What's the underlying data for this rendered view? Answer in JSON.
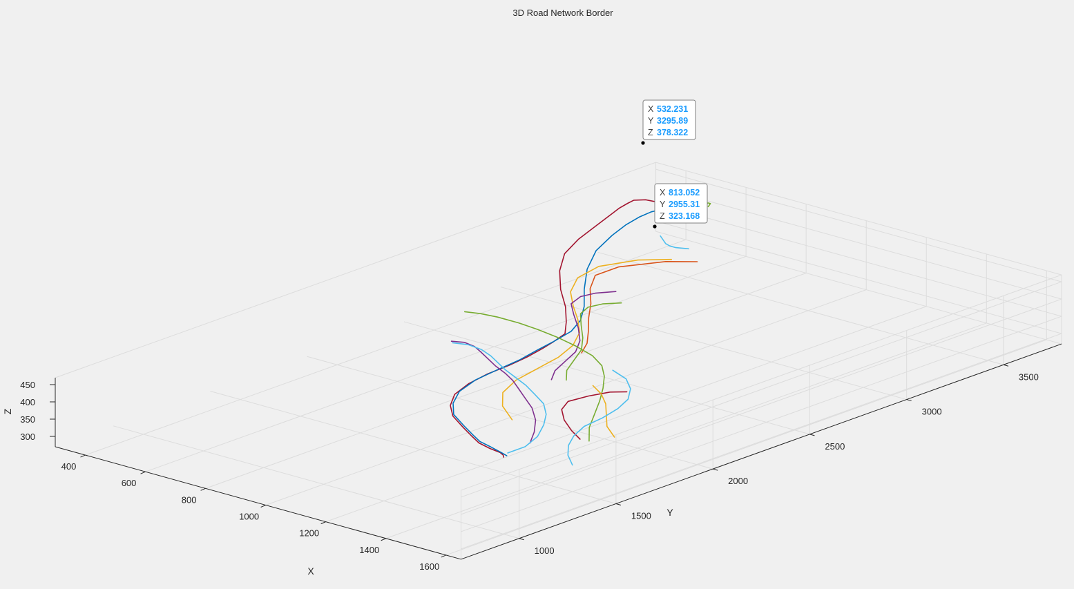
{
  "chart_data": {
    "type": "line",
    "title": "3D Road Network Border",
    "xlabel": "X",
    "ylabel": "Y",
    "zlabel": "Z",
    "xlim": [
      300,
      1650
    ],
    "ylim": [
      700,
      3800
    ],
    "zlim": [
      270,
      470
    ],
    "x_ticks": [
      400,
      600,
      800,
      1000,
      1200,
      1400,
      1600
    ],
    "y_ticks": [
      1000,
      1500,
      2000,
      2500,
      3000,
      3500
    ],
    "z_ticks": [
      300,
      350,
      400,
      450
    ],
    "grid": true,
    "colors": [
      "#0072BD",
      "#D95319",
      "#EDB120",
      "#7E2F8E",
      "#77AC30",
      "#4DBEEE",
      "#A2142F"
    ],
    "series": [
      {
        "color": "#A2142F",
        "z": 400,
        "x": [
          520,
          440,
          350,
          330,
          335,
          345,
          360,
          380,
          400,
          430,
          480,
          560,
          660,
          760,
          840,
          900,
          920,
          935,
          950,
          960,
          965,
          980,
          1010,
          1060,
          1120,
          1200,
          1260,
          1310,
          1360,
          1400,
          1420,
          1430
        ],
        "y": [
          3700,
          3690,
          3670,
          3640,
          3600,
          3540,
          3480,
          3400,
          3320,
          3200,
          3050,
          2900,
          2750,
          2620,
          2500,
          2400,
          2310,
          2230,
          2130,
          2020,
          1900,
          1780,
          1660,
          1560,
          1480,
          1410,
          1360,
          1320,
          1300,
          1290,
          1275,
          1260
        ]
      },
      {
        "color": "#0072BD",
        "z": 398,
        "x": [
          515,
          470,
          430,
          420,
          425,
          440,
          470,
          520,
          600,
          700,
          790,
          855,
          895,
          915,
          930,
          948,
          958,
          970,
          1000,
          1050,
          1110,
          1190,
          1250,
          1300,
          1350,
          1395,
          1425
        ],
        "y": [
          3680,
          3680,
          3650,
          3590,
          3520,
          3430,
          3310,
          3150,
          2980,
          2810,
          2670,
          2550,
          2440,
          2320,
          2210,
          2090,
          1960,
          1830,
          1700,
          1590,
          1500,
          1430,
          1380,
          1340,
          1320,
          1300,
          1285
        ]
      },
      {
        "color": "#77AC30",
        "z": 398,
        "x": [
          520,
          490,
          480,
          488,
          500
        ],
        "y": [
          3720,
          3750,
          3790,
          3790,
          3760
        ]
      },
      {
        "color": "#4DBEEE",
        "z": 396,
        "x": [
          560,
          590,
          610,
          630,
          650,
          680
        ],
        "y": [
          3420,
          3390,
          3370,
          3360,
          3360,
          3380
        ]
      },
      {
        "color": "#EDB120",
        "z": 394,
        "x": [
          700,
          640,
          600,
          620,
          680,
          760,
          840,
          910,
          965,
          1000,
          1020,
          1040,
          1080,
          1150,
          1240
        ],
        "y": [
          3260,
          3180,
          3040,
          2900,
          2770,
          2660,
          2560,
          2460,
          2340,
          2210,
          2070,
          1930,
          1800,
          1690,
          1600
        ]
      },
      {
        "color": "#D95319",
        "z": 394,
        "x": [
          760,
          700,
          640,
          640,
          700,
          780,
          850,
          920,
          980,
          1020
        ],
        "y": [
          3300,
          3230,
          3080,
          2960,
          2840,
          2720,
          2600,
          2490,
          2390,
          2300
        ]
      },
      {
        "color": "#7E2F8E",
        "z": 392,
        "x": [
          760,
          730,
          720,
          740,
          800,
          880,
          950,
          1000,
          1030,
          1060,
          1100
        ],
        "y": [
          2880,
          2820,
          2760,
          2680,
          2600,
          2500,
          2400,
          2300,
          2200,
          2100,
          2020
        ]
      },
      {
        "color": "#77AC30",
        "z": 392,
        "x": [
          830,
          800,
          790,
          810,
          870,
          940,
          1000,
          1040,
          1080,
          1130
        ],
        "y": [
          2800,
          2750,
          2690,
          2620,
          2530,
          2430,
          2330,
          2230,
          2130,
          2050
        ]
      },
      {
        "color": "#7E2F8E",
        "z": 380,
        "x": [
          690,
          720,
          760,
          800,
          850,
          900,
          960,
          1010,
          1060,
          1120,
          1190,
          1260,
          1320,
          1370
        ],
        "y": [
          2140,
          2160,
          2150,
          2120,
          2080,
          2040,
          2000,
          1960,
          1910,
          1850,
          1780,
          1690,
          1590,
          1490
        ]
      },
      {
        "color": "#4DBEEE",
        "z": 380,
        "x": [
          700,
          740,
          790,
          840,
          890,
          940,
          1000,
          1060,
          1120,
          1190,
          1250,
          1300,
          1350,
          1380,
          1380
        ],
        "y": [
          2130,
          2150,
          2140,
          2110,
          2070,
          2030,
          1990,
          1950,
          1900,
          1840,
          1760,
          1670,
          1560,
          1450,
          1360
        ]
      },
      {
        "color": "#77AC30",
        "z": 380,
        "x": [
          560,
          600,
          650,
          720,
          790,
          870,
          950,
          1030,
          1100,
          1160,
          1220,
          1280,
          1340,
          1400,
          1470
        ],
        "y": [
          2410,
          2430,
          2440,
          2440,
          2430,
          2410,
          2380,
          2340,
          2280,
          2200,
          2100,
          1990,
          1870,
          1750,
          1640
        ]
      },
      {
        "color": "#A2142F",
        "z": 378,
        "x": [
          1280,
          1250,
          1230,
          1220,
          1250,
          1310,
          1380,
          1440
        ],
        "y": [
          2130,
          2090,
          2010,
          1920,
          1840,
          1760,
          1690,
          1640
        ]
      },
      {
        "color": "#EDB120",
        "z": 376,
        "x": [
          1180,
          1240,
          1300,
          1360,
          1420,
          1490
        ],
        "y": [
          2110,
          2060,
          1990,
          1900,
          1810,
          1740
        ]
      },
      {
        "color": "#4DBEEE",
        "z": 372,
        "x": [
          1130,
          1200,
          1260,
          1310,
          1340,
          1360,
          1370,
          1400,
          1440,
          1490,
          1550
        ],
        "y": [
          2290,
          2250,
          2180,
          2090,
          1990,
          1880,
          1770,
          1670,
          1580,
          1500,
          1430
        ]
      }
    ],
    "datatips": [
      {
        "x_label": "X",
        "x_value": "532.231",
        "y_label": "Y",
        "y_value": "3295.89",
        "z_label": "Z",
        "z_value": "378.322"
      },
      {
        "x_label": "X",
        "x_value": "813.052",
        "y_label": "Y",
        "y_value": "2955.31",
        "z_label": "Z",
        "z_value": "323.168"
      }
    ]
  }
}
